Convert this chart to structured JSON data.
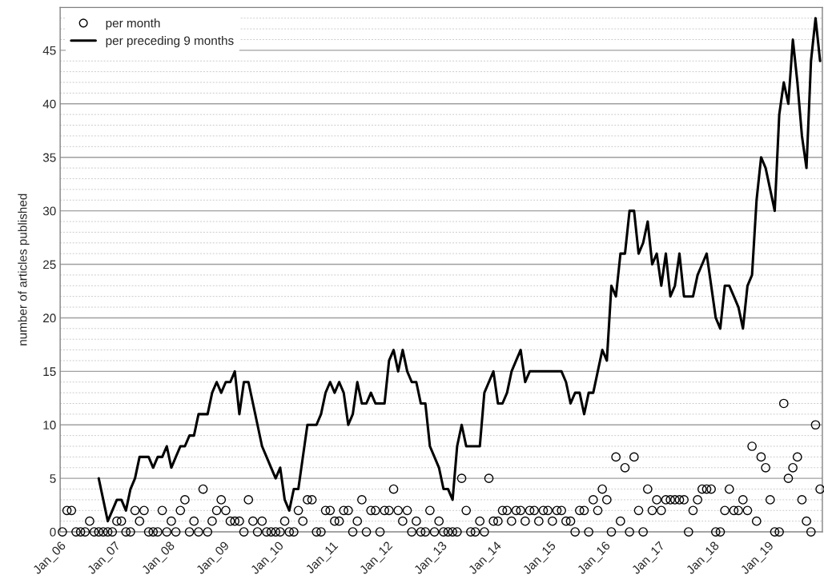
{
  "chart_data": {
    "type": "line",
    "ylabel": "number of articles published",
    "categories": [
      "Jan_06",
      null,
      null,
      null,
      null,
      null,
      null,
      null,
      null,
      null,
      null,
      null,
      "Jan_07",
      null,
      null,
      null,
      null,
      null,
      null,
      null,
      null,
      null,
      null,
      null,
      "Jan_08",
      null,
      null,
      null,
      null,
      null,
      null,
      null,
      null,
      null,
      null,
      null,
      "Jan_09",
      null,
      null,
      null,
      null,
      null,
      null,
      null,
      null,
      null,
      null,
      null,
      "Jan_10",
      null,
      null,
      null,
      null,
      null,
      null,
      null,
      null,
      null,
      null,
      null,
      "Jan_11",
      null,
      null,
      null,
      null,
      null,
      null,
      null,
      null,
      null,
      null,
      null,
      "Jan_12",
      null,
      null,
      null,
      null,
      null,
      null,
      null,
      null,
      null,
      null,
      null,
      "Jan_13",
      null,
      null,
      null,
      null,
      null,
      null,
      null,
      null,
      null,
      null,
      null,
      "Jan_14",
      null,
      null,
      null,
      null,
      null,
      null,
      null,
      null,
      null,
      null,
      null,
      "Jan_15",
      null,
      null,
      null,
      null,
      null,
      null,
      null,
      null,
      null,
      null,
      null,
      "Jan_16",
      null,
      null,
      null,
      null,
      null,
      null,
      null,
      null,
      null,
      null,
      null,
      "Jan_17",
      null,
      null,
      null,
      null,
      null,
      null,
      null,
      null,
      null,
      null,
      null,
      "Jan_18",
      null,
      null,
      null,
      null,
      null,
      null,
      null,
      null,
      null,
      null,
      null,
      "Jan_19",
      null,
      null,
      null,
      null,
      null,
      null,
      null,
      null,
      null,
      null,
      null
    ],
    "series": [
      {
        "name": "per month",
        "type": "scatter",
        "marker": "circle",
        "color": "#000000",
        "values": [
          0,
          2,
          2,
          0,
          0,
          0,
          1,
          0,
          0,
          0,
          0,
          0,
          1,
          1,
          0,
          0,
          2,
          1,
          2,
          0,
          0,
          0,
          2,
          0,
          1,
          0,
          2,
          3,
          0,
          1,
          0,
          4,
          0,
          1,
          2,
          3,
          2,
          1,
          1,
          1,
          0,
          3,
          1,
          0,
          1,
          0,
          0,
          0,
          0,
          1,
          0,
          0,
          2,
          1,
          3,
          3,
          0,
          0,
          2,
          2,
          1,
          1,
          2,
          2,
          0,
          1,
          3,
          0,
          2,
          2,
          0,
          2,
          2,
          4,
          2,
          1,
          2,
          0,
          1,
          0,
          0,
          2,
          0,
          1,
          0,
          0,
          0,
          0,
          5,
          2,
          0,
          0,
          1,
          0,
          5,
          1,
          1,
          2,
          2,
          1,
          2,
          2,
          1,
          2,
          2,
          1,
          2,
          2,
          1,
          2,
          2,
          1,
          1,
          0,
          2,
          2,
          0,
          3,
          2,
          4,
          3,
          0,
          7,
          1,
          6,
          0,
          7,
          2,
          0,
          4,
          2,
          3,
          2,
          3,
          3,
          3,
          3,
          3,
          0,
          2,
          3,
          4,
          4,
          4,
          0,
          0,
          2,
          4,
          2,
          2,
          3,
          2,
          8,
          1,
          7,
          6,
          3,
          0,
          0,
          12,
          5,
          6,
          7,
          3,
          1,
          0,
          10,
          4
        ]
      },
      {
        "name": "per preceding 9 months",
        "marker": "none",
        "line_style": "solid",
        "color": "#000000",
        "values": [
          null,
          null,
          null,
          null,
          null,
          null,
          null,
          null,
          5,
          3,
          1,
          2,
          3,
          3,
          2,
          4,
          5,
          7,
          7,
          7,
          6,
          7,
          7,
          8,
          6,
          7,
          8,
          8,
          9,
          9,
          11,
          11,
          11,
          13,
          14,
          13,
          14,
          14,
          15,
          11,
          14,
          14,
          12,
          10,
          8,
          7,
          6,
          5,
          6,
          3,
          2,
          4,
          4,
          7,
          10,
          10,
          10,
          11,
          13,
          14,
          13,
          14,
          13,
          10,
          11,
          14,
          12,
          12,
          13,
          12,
          12,
          12,
          16,
          17,
          15,
          17,
          15,
          14,
          14,
          12,
          12,
          8,
          7,
          6,
          4,
          4,
          3,
          8,
          10,
          8,
          8,
          8,
          8,
          13,
          14,
          15,
          12,
          12,
          13,
          15,
          16,
          17,
          14,
          15,
          15,
          15,
          15,
          15,
          15,
          15,
          15,
          14,
          12,
          13,
          13,
          11,
          13,
          13,
          15,
          17,
          16,
          23,
          22,
          26,
          26,
          30,
          30,
          26,
          27,
          29,
          25,
          26,
          23,
          26,
          22,
          23,
          26,
          22,
          22,
          22,
          24,
          25,
          26,
          23,
          20,
          19,
          23,
          23,
          22,
          21,
          19,
          23,
          24,
          31,
          35,
          34,
          32,
          30,
          39,
          42,
          40,
          46,
          42,
          37,
          34,
          44,
          48,
          44
        ]
      }
    ],
    "ylim": [
      0,
      49
    ],
    "yticks": [
      0,
      {
        "value": 1,
        "label": null
      },
      {
        "value": 2,
        "label": null
      },
      {
        "value": 3,
        "label": null
      },
      {
        "value": 4,
        "label": null
      },
      5,
      {
        "value": 6,
        "label": null
      },
      {
        "value": 7,
        "label": null
      },
      {
        "value": 8,
        "label": null
      },
      {
        "value": 9,
        "label": null
      },
      10,
      {
        "value": 11,
        "label": null
      },
      {
        "value": 12,
        "label": null
      },
      {
        "value": 13,
        "label": null
      },
      {
        "value": 14,
        "label": null
      },
      15,
      {
        "value": 16,
        "label": null
      },
      {
        "value": 17,
        "label": null
      },
      {
        "value": 18,
        "label": null
      },
      {
        "value": 19,
        "label": null
      },
      20,
      {
        "value": 21,
        "label": null
      },
      {
        "value": 22,
        "label": null
      },
      {
        "value": 23,
        "label": null
      },
      {
        "value": 24,
        "label": null
      },
      25,
      {
        "value": 26,
        "label": null
      },
      {
        "value": 27,
        "label": null
      },
      {
        "value": 28,
        "label": null
      },
      {
        "value": 29,
        "label": null
      },
      30,
      {
        "value": 31,
        "label": null
      },
      {
        "value": 32,
        "label": null
      },
      {
        "value": 33,
        "label": null
      },
      {
        "value": 34,
        "label": null
      },
      35,
      {
        "value": 36,
        "label": null
      },
      {
        "value": 37,
        "label": null
      },
      {
        "value": 38,
        "label": null
      },
      {
        "value": 39,
        "label": null
      },
      40,
      {
        "value": 41,
        "label": null
      },
      {
        "value": 42,
        "label": null
      },
      {
        "value": 43,
        "label": null
      },
      {
        "value": 44,
        "label": null
      },
      45,
      {
        "value": 46,
        "label": null
      },
      {
        "value": 47,
        "label": null
      },
      {
        "value": 48,
        "label": null
      }
    ],
    "grid": "y",
    "legend": "top left"
  }
}
